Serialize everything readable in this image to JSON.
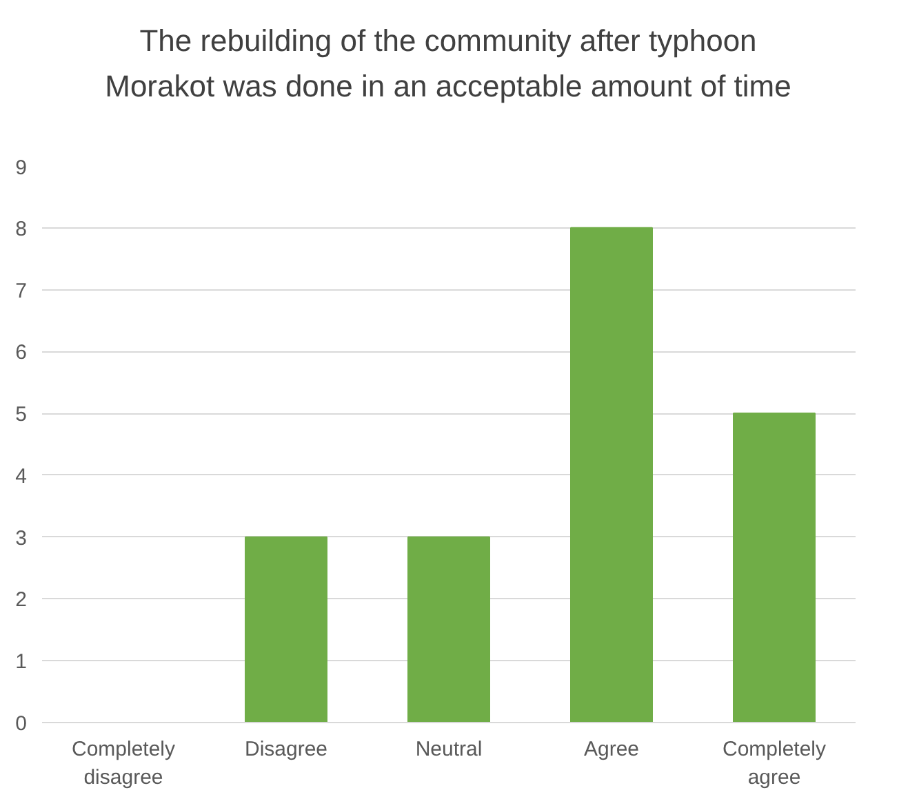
{
  "chart_data": {
    "type": "bar",
    "title": "The rebuilding of the community after typhoon Morakot was done in an acceptable amount of time",
    "categories": [
      "Completely disagree",
      "Disagree",
      "Neutral",
      "Agree",
      "Completely agree"
    ],
    "values": [
      0,
      3,
      3,
      8,
      5
    ],
    "color": "#70ad47",
    "ylim": [
      0,
      9
    ],
    "yticks": [
      0,
      1,
      2,
      3,
      4,
      5,
      6,
      7,
      8,
      9
    ],
    "grid": "y"
  }
}
